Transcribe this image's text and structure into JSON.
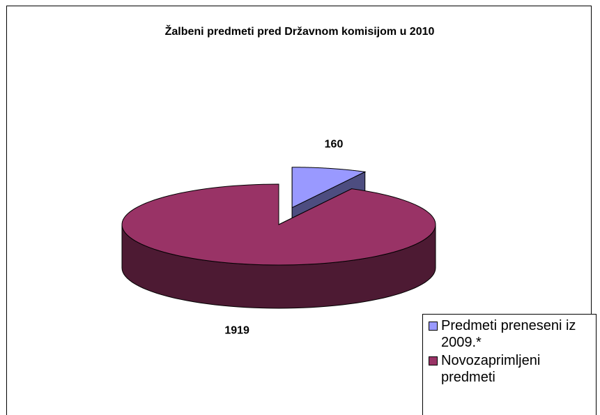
{
  "chart_data": {
    "type": "pie",
    "title": "Žalbeni predmeti pred Državnom komisijom u 2010",
    "categories": [
      "Predmeti preneseni iz 2009.*",
      "Novozaprimljeni predmeti"
    ],
    "values": [
      160,
      1919
    ],
    "colors": [
      "#9999ff",
      "#993366"
    ],
    "exploded": [
      true,
      false
    ],
    "legend": "bottom-right"
  }
}
